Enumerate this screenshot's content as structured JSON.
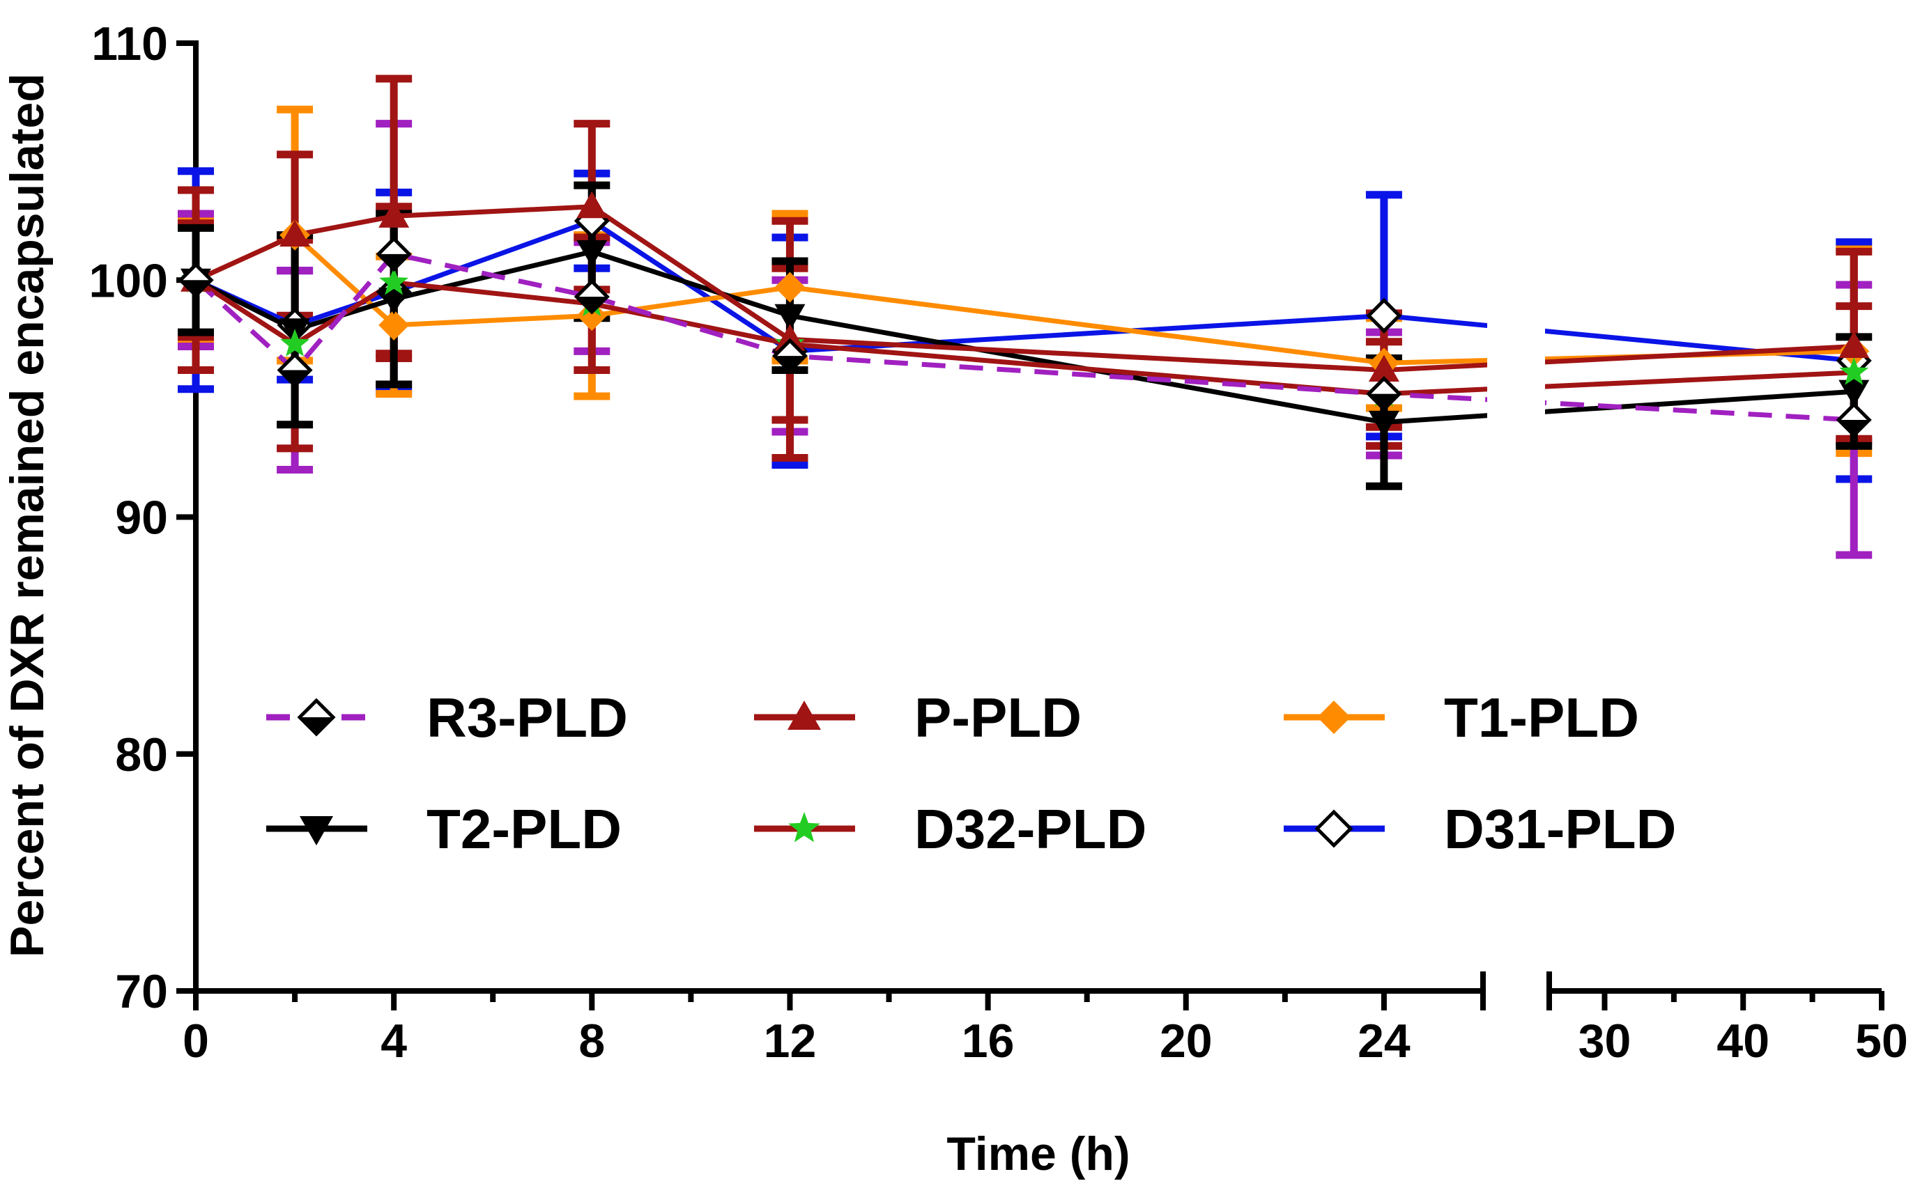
{
  "chart_data": {
    "type": "line",
    "title": "",
    "xlabel": "Time (h)",
    "ylabel": "Percent of DXR remained encapsulated",
    "ylim": [
      70,
      110
    ],
    "yticks": [
      70,
      80,
      90,
      100,
      110
    ],
    "x_segments": [
      {
        "range": [
          0,
          26
        ],
        "ticks": [
          0,
          4,
          8,
          12,
          16,
          20,
          24
        ],
        "minor_ticks": [
          2,
          6,
          10,
          14,
          18,
          22,
          26
        ]
      },
      {
        "range": [
          26,
          50
        ],
        "ticks": [
          30,
          40,
          50
        ],
        "minor_ticks": [
          35,
          45
        ]
      }
    ],
    "axis_break": true,
    "grid": false,
    "legend_position": "center",
    "x": [
      0,
      2,
      4,
      8,
      12,
      24,
      48
    ],
    "series": [
      {
        "name": "R3-PLD",
        "color": "#a020c0",
        "dash": "dashed",
        "marker": "half-diamond",
        "values": [
          100.0,
          96.2,
          101.1,
          99.3,
          96.8,
          95.2,
          94.1
        ],
        "errors": [
          2.8,
          4.2,
          5.5,
          2.3,
          3.2,
          2.6,
          5.7
        ]
      },
      {
        "name": "P-PLD",
        "color": "#a01414",
        "dash": "solid",
        "marker": "triangle-up",
        "values": [
          100.0,
          101.9,
          102.7,
          103.1,
          97.5,
          96.2,
          97.2
        ],
        "errors": [
          3.8,
          3.4,
          5.8,
          3.5,
          5.0,
          2.4,
          4.0
        ]
      },
      {
        "name": "T1-PLD",
        "color": "#ff8c00",
        "dash": "solid",
        "marker": "diamond",
        "values": [
          100.0,
          101.9,
          98.1,
          98.5,
          99.7,
          96.5,
          97.0
        ],
        "errors": [
          2.5,
          5.3,
          2.9,
          3.4,
          3.1,
          1.9,
          4.3
        ]
      },
      {
        "name": "T2-PLD",
        "color": "#000000",
        "dash": "solid",
        "marker": "triangle-down",
        "values": [
          100.0,
          97.9,
          99.2,
          101.2,
          98.5,
          94.0,
          95.3
        ],
        "errors": [
          2.2,
          4.0,
          3.6,
          2.8,
          2.3,
          2.7,
          2.3
        ]
      },
      {
        "name": "D32-PLD",
        "color": "#a01414",
        "dash": "solid",
        "marker": "star",
        "values": [
          100.0,
          97.3,
          99.9,
          99.0,
          97.3,
          95.2,
          96.1
        ],
        "errors": [
          2.4,
          4.4,
          3.2,
          2.8,
          3.2,
          2.2,
          2.8
        ]
      },
      {
        "name": "D31-PLD",
        "color": "#0a14e6",
        "dash": "solid",
        "marker": "open-diamond",
        "values": [
          100.0,
          98.1,
          99.5,
          102.5,
          97.0,
          98.5,
          96.6
        ],
        "errors": [
          4.6,
          2.3,
          4.2,
          2.0,
          4.8,
          5.1,
          5.0
        ]
      }
    ],
    "legend": {
      "items": [
        {
          "series": 0,
          "label": "R3-PLD"
        },
        {
          "series": 1,
          "label": "P-PLD"
        },
        {
          "series": 2,
          "label": "T1-PLD"
        },
        {
          "series": 3,
          "label": "T2-PLD"
        },
        {
          "series": 4,
          "label": "D32-PLD"
        },
        {
          "series": 5,
          "label": "D31-PLD"
        }
      ]
    }
  }
}
